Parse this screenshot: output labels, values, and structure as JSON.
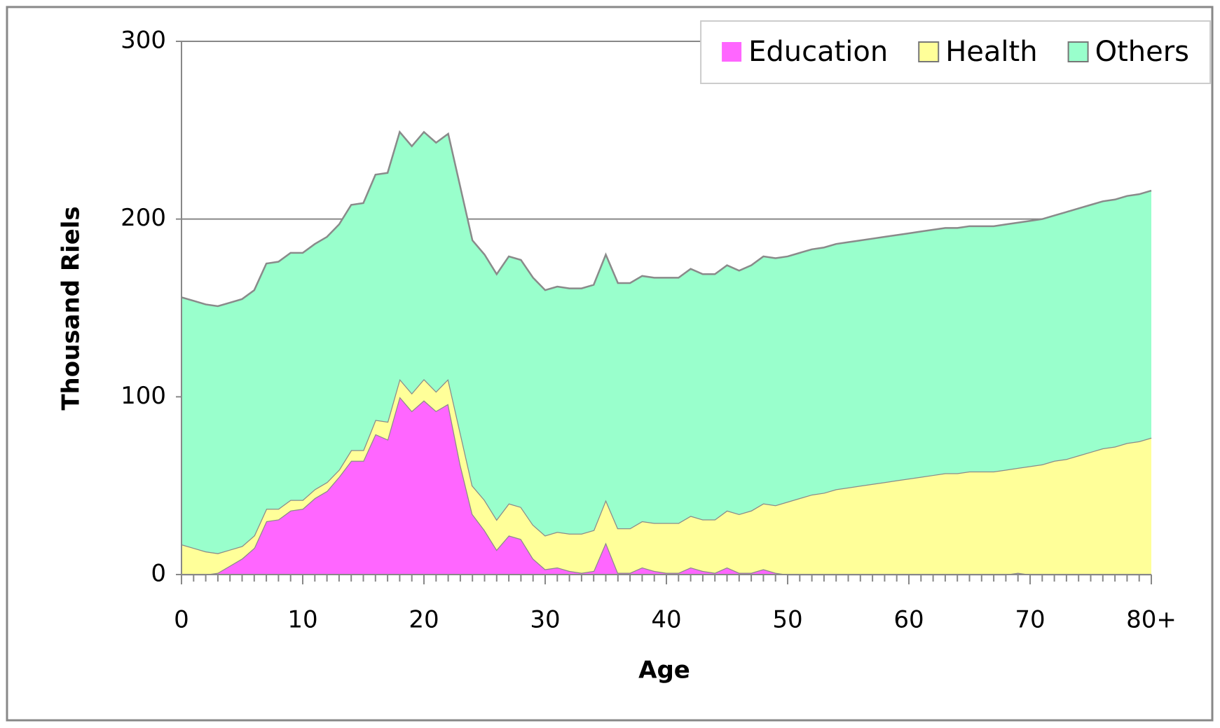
{
  "chart_data": {
    "type": "stacked_area",
    "x_label": "Age",
    "y_label": "Thousand Riels",
    "x": [
      0,
      1,
      2,
      3,
      4,
      5,
      6,
      7,
      8,
      9,
      10,
      11,
      12,
      13,
      14,
      15,
      16,
      17,
      18,
      19,
      20,
      21,
      22,
      23,
      24,
      25,
      26,
      27,
      28,
      29,
      30,
      31,
      32,
      33,
      34,
      35,
      36,
      37,
      38,
      39,
      40,
      41,
      42,
      43,
      44,
      45,
      46,
      47,
      48,
      49,
      50,
      51,
      52,
      53,
      54,
      55,
      56,
      57,
      58,
      59,
      60,
      61,
      62,
      63,
      64,
      65,
      66,
      67,
      68,
      69,
      70,
      71,
      72,
      73,
      74,
      75,
      76,
      77,
      78,
      79,
      80
    ],
    "series": [
      {
        "name": "Education",
        "color": "#ff66ff",
        "values": [
          0,
          0,
          0,
          1,
          5,
          9,
          15,
          30,
          31,
          36,
          37,
          43,
          47,
          55,
          64,
          64,
          79,
          76,
          100,
          92,
          98,
          92,
          96,
          62,
          34,
          25,
          14,
          22,
          20,
          9,
          3,
          4,
          2,
          1,
          2,
          18,
          1,
          1,
          4,
          2,
          1,
          1,
          4,
          2,
          1,
          4,
          1,
          1,
          3,
          1,
          0,
          0,
          0,
          0,
          0,
          0,
          0,
          0,
          0,
          0,
          0,
          0,
          0,
          0,
          0,
          0,
          0,
          0,
          0,
          1,
          0,
          0,
          0,
          0,
          0,
          0,
          0,
          0,
          0,
          0,
          0
        ]
      },
      {
        "name": "Health",
        "color": "#ffff99",
        "values": [
          17,
          15,
          13,
          11,
          9,
          7,
          7,
          7,
          6,
          6,
          5,
          5,
          5,
          4,
          6,
          6,
          8,
          10,
          10,
          10,
          12,
          11,
          14,
          18,
          16,
          17,
          17,
          18,
          18,
          19,
          19,
          20,
          21,
          22,
          23,
          24,
          25,
          25,
          26,
          27,
          28,
          28,
          29,
          29,
          30,
          32,
          33,
          35,
          37,
          38,
          41,
          43,
          45,
          46,
          48,
          49,
          50,
          51,
          52,
          53,
          54,
          55,
          56,
          57,
          57,
          58,
          58,
          58,
          59,
          59,
          61,
          62,
          64,
          65,
          67,
          69,
          71,
          72,
          74,
          75,
          77
        ]
      },
      {
        "name": "Others",
        "color": "#99ffcc",
        "values": [
          139,
          139,
          139,
          139,
          139,
          139,
          138,
          138,
          139,
          139,
          139,
          138,
          138,
          138,
          138,
          139,
          138,
          140,
          139,
          139,
          139,
          140,
          138,
          138,
          138,
          138,
          138,
          139,
          139,
          139,
          138,
          138,
          138,
          138,
          138,
          138,
          138,
          138,
          138,
          138,
          138,
          138,
          139,
          138,
          138,
          138,
          137,
          138,
          139,
          139,
          138,
          138,
          138,
          138,
          138,
          138,
          138,
          138,
          138,
          138,
          138,
          138,
          138,
          138,
          138,
          138,
          138,
          138,
          138,
          138,
          138,
          138,
          138,
          139,
          139,
          139,
          139,
          139,
          139,
          139,
          139
        ]
      }
    ],
    "xlim": [
      0,
      80
    ],
    "xticks": [
      0,
      10,
      20,
      30,
      40,
      50,
      60,
      70,
      {
        "value": 80,
        "label": "80+"
      }
    ],
    "ylim": [
      0,
      300
    ],
    "yticks": [
      0,
      100,
      200,
      300
    ],
    "grid": true,
    "legend": "upper right"
  }
}
